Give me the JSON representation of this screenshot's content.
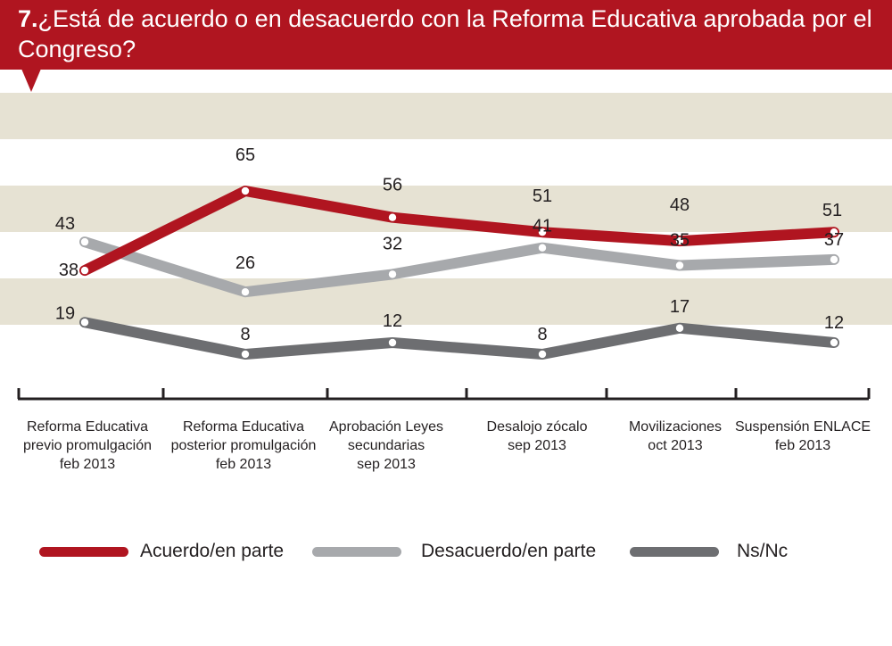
{
  "title": {
    "number": "7.",
    "text": "¿Está de acuerdo o en desacuerdo con la Reforma Educativa aprobada por el Congreso?"
  },
  "colors": {
    "banner": "#b01520",
    "band": "#e6e2d3",
    "acuerdo": "#b01520",
    "desacuerdo": "#a7a9ac",
    "nsnc": "#6d6e71"
  },
  "chart_data": {
    "type": "line",
    "categories": [
      "Reforma Educativa\nprevio promulgación\nfeb 2013",
      "Reforma Educativa\nposterior promulgación\nfeb 2013",
      "Aprobación Leyes\nsecundarias\nsep 2013",
      "Desalojo zócalo\nsep 2013",
      "Movilizaciones\noct 2013",
      "Suspensión ENLACE\nfeb 2013"
    ],
    "series": [
      {
        "name": "Acuerdo/en parte",
        "values": [
          38,
          65,
          56,
          51,
          48,
          51
        ]
      },
      {
        "name": "Desacuerdo/en parte",
        "values": [
          43,
          26,
          32,
          41,
          35,
          37
        ]
      },
      {
        "name": "Ns/Nc",
        "values": [
          19,
          8,
          12,
          8,
          17,
          12
        ]
      }
    ],
    "grid": "horizontal bands",
    "legend": "bottom"
  }
}
